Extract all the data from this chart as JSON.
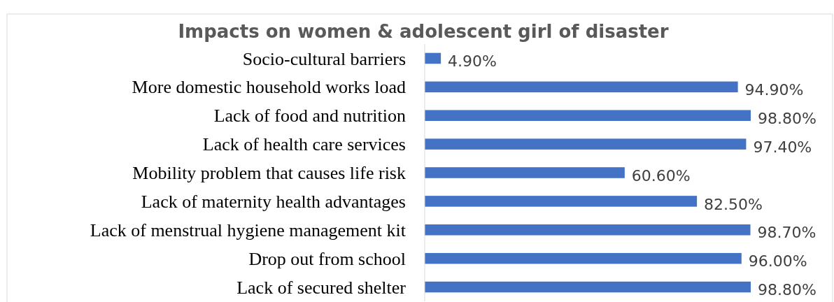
{
  "chart_data": {
    "type": "bar",
    "orientation": "horizontal",
    "title": "Impacts on women & adolescent girl of disaster",
    "categories": [
      "Socio-cultural barriers",
      "More domestic household works load",
      "Lack of food and nutrition",
      "Lack of health care services",
      "Mobility problem that causes life risk",
      "Lack of maternity health advantages",
      "Lack of menstrual hygiene management kit",
      "Drop out from school",
      "Lack of secured shelter"
    ],
    "values": [
      4.9,
      94.9,
      98.8,
      97.4,
      60.6,
      82.5,
      98.7,
      96.0,
      98.8
    ],
    "value_labels": [
      "4.90%",
      "94.90%",
      "98.80%",
      "97.40%",
      "60.60%",
      "82.50%",
      "98.70%",
      "96.00%",
      "98.80%"
    ],
    "color": "#4472c4"
  }
}
